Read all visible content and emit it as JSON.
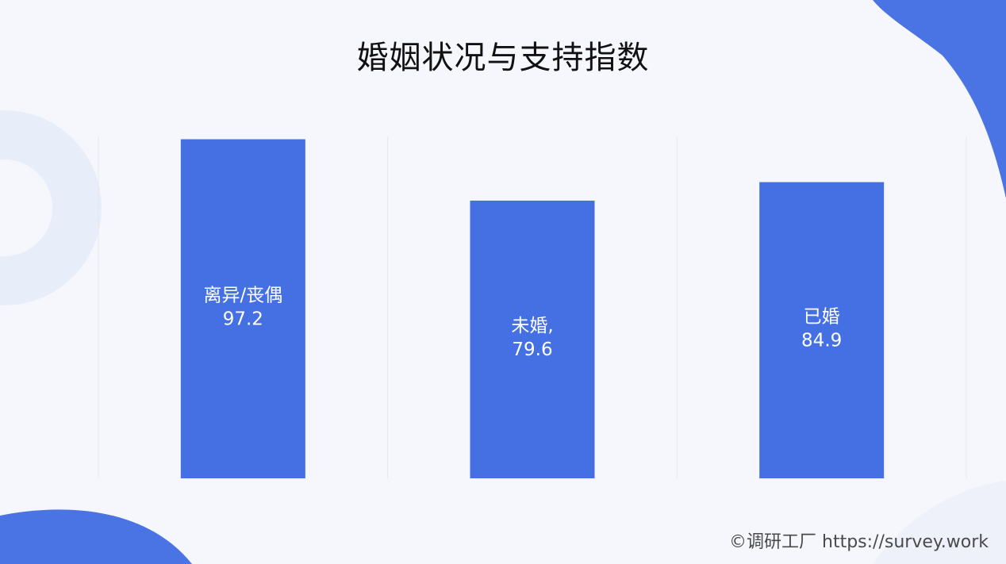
{
  "title": "婚姻状况与支持指数",
  "footer": "©调研工厂 https://survey.work",
  "colors": {
    "bar": "#4470e3",
    "accent_blob": "#4a74e4",
    "ring": "#e8edfa",
    "gridline": "#e6e8ef",
    "label": "#ffffff"
  },
  "chart_data": {
    "type": "bar",
    "categories": [
      "离异/丧偶",
      "未婚,",
      "已婚"
    ],
    "values": [
      97.2,
      79.6,
      84.9
    ],
    "value_labels": [
      "97.2",
      "79.6",
      "84.9"
    ],
    "title": "婚姻状况与支持指数",
    "xlabel": "",
    "ylabel": "",
    "ylim": [
      0,
      98
    ],
    "grid": false,
    "legend": "none"
  }
}
